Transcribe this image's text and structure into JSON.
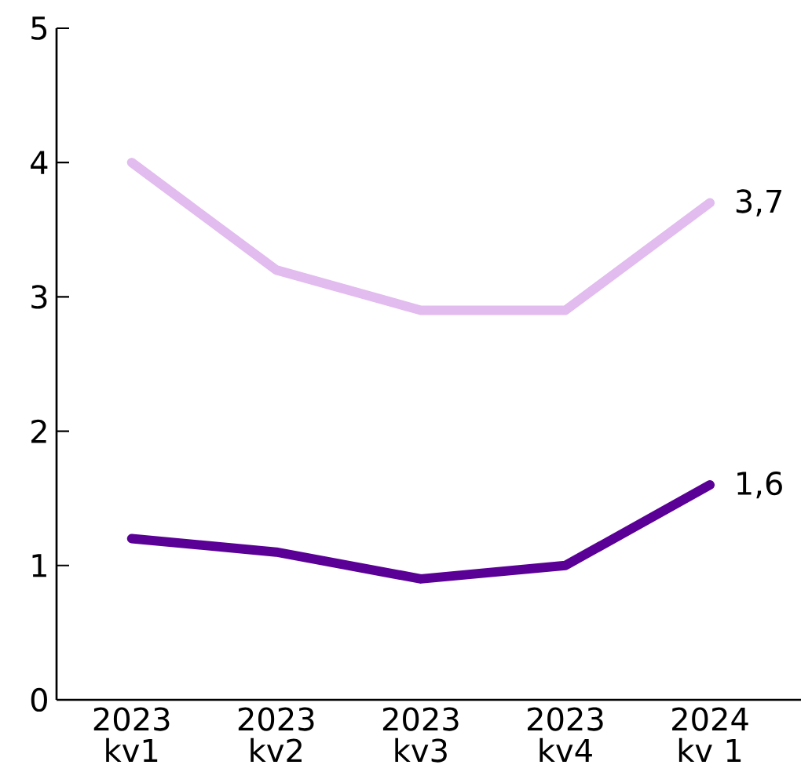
{
  "chart_data": {
    "type": "line",
    "categories": [
      "2023 kv1",
      "2023 kv2",
      "2023 kv3",
      "2023 kv4",
      "2024 kv 1"
    ],
    "series": [
      {
        "color": "#e2bbef",
        "values": [
          4.0,
          3.2,
          2.9,
          2.9,
          3.7
        ],
        "value_labels": [
          null,
          null,
          null,
          null,
          "3,7"
        ]
      },
      {
        "color": "#5a0096",
        "values": [
          1.2,
          1.1,
          0.9,
          1.0,
          1.6
        ],
        "value_labels": [
          null,
          null,
          null,
          null,
          "1,6"
        ]
      }
    ],
    "ylim": [
      0,
      5
    ],
    "yticks": [
      0,
      1,
      2,
      3,
      4,
      5
    ],
    "grid": false,
    "marker": "none",
    "line_style": "solid"
  }
}
